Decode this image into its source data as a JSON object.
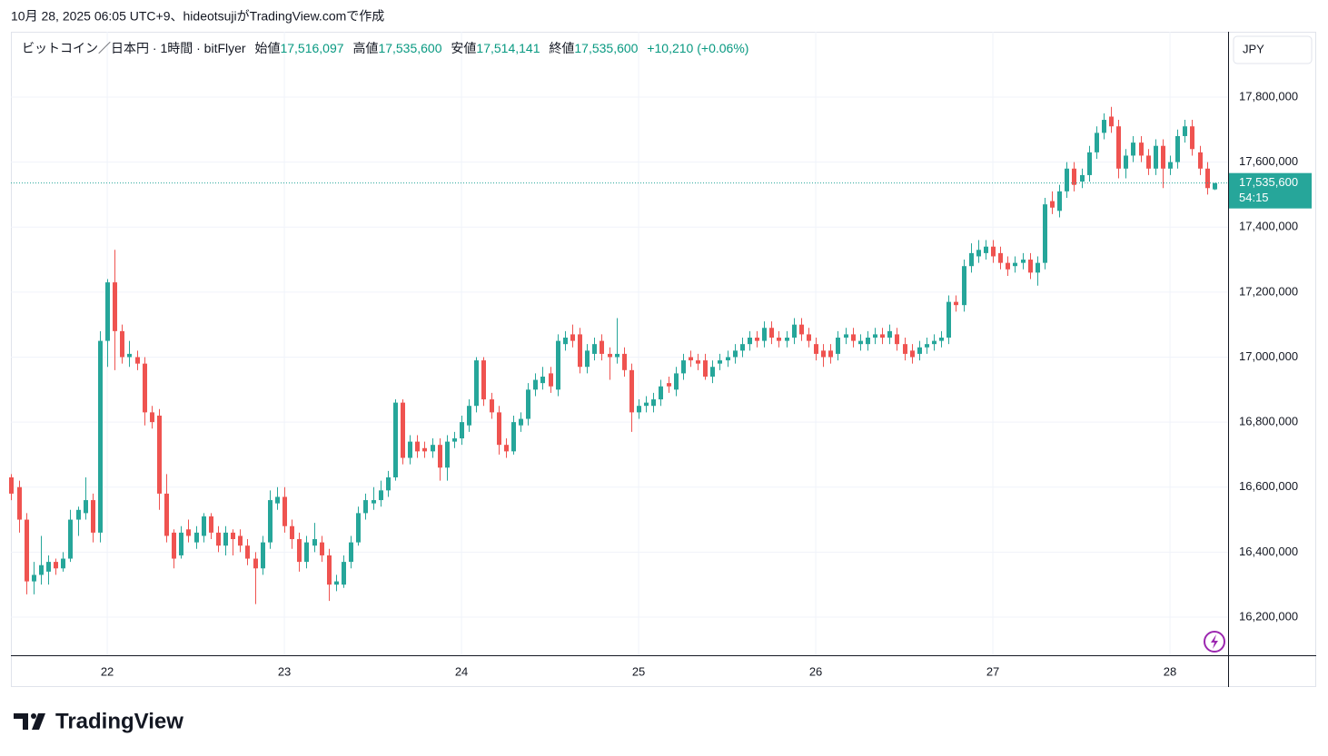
{
  "caption": "10月 28, 2025 06:05 UTC+9、hideotsujiがTradingView.comで作成",
  "brand": "TradingView",
  "currency": "JPY",
  "last_price_label": "17,535,600",
  "countdown": "54:15",
  "legend": {
    "symbol": "ビットコイン／日本円 · 1時間 · bitFlyer",
    "ohlc": [
      {
        "label": "始値",
        "value": "17,516,097"
      },
      {
        "label": "高値",
        "value": "17,535,600"
      },
      {
        "label": "安値",
        "value": "17,514,141"
      },
      {
        "label": "終値",
        "value": "17,535,600"
      }
    ],
    "change": "+10,210 (+0.06%)"
  },
  "chart_data": {
    "type": "candlestick",
    "up_color": "#26a69a",
    "down_color": "#ef5350",
    "grid": true,
    "xlim": [
      21.456,
      28.328
    ],
    "xticks": [
      22,
      23,
      24,
      25,
      26,
      27,
      28
    ],
    "ylim": [
      16082700,
      18001000
    ],
    "yticks": [
      {
        "value": 16200000,
        "label": "16,200,000"
      },
      {
        "value": 16400000,
        "label": "16,400,000"
      },
      {
        "value": 16600000,
        "label": "16,600,000"
      },
      {
        "value": 16800000,
        "label": "16,800,000"
      },
      {
        "value": 17000000,
        "label": "17,000,000"
      },
      {
        "value": 17200000,
        "label": "17,200,000"
      },
      {
        "value": 17400000,
        "label": "17,400,000"
      },
      {
        "value": 17600000,
        "label": "17,600,000"
      },
      {
        "value": 17800000,
        "label": "17,800,000"
      }
    ],
    "x": [
      21.4583,
      21.5,
      21.5417,
      21.5833,
      21.625,
      21.6667,
      21.7083,
      21.75,
      21.7917,
      21.8333,
      21.875,
      21.9167,
      21.9583,
      22,
      22.0417,
      22.0833,
      22.125,
      22.1667,
      22.2083,
      22.25,
      22.2917,
      22.3333,
      22.375,
      22.4167,
      22.4583,
      22.5,
      22.5417,
      22.5833,
      22.625,
      22.6667,
      22.7083,
      22.75,
      22.7917,
      22.8333,
      22.875,
      22.9167,
      22.9583,
      23,
      23.0417,
      23.0833,
      23.125,
      23.1667,
      23.2083,
      23.25,
      23.2917,
      23.3333,
      23.375,
      23.4167,
      23.4583,
      23.5,
      23.5417,
      23.5833,
      23.625,
      23.6667,
      23.7083,
      23.75,
      23.7917,
      23.8333,
      23.875,
      23.9167,
      23.9583,
      24,
      24.0417,
      24.0833,
      24.125,
      24.1667,
      24.2083,
      24.25,
      24.2917,
      24.3333,
      24.375,
      24.4167,
      24.4583,
      24.5,
      24.5417,
      24.5833,
      24.625,
      24.6667,
      24.7083,
      24.75,
      24.7917,
      24.8333,
      24.875,
      24.9167,
      24.9583,
      25,
      25.0417,
      25.0833,
      25.125,
      25.1667,
      25.2083,
      25.25,
      25.2917,
      25.3333,
      25.375,
      25.4167,
      25.4583,
      25.5,
      25.5417,
      25.5833,
      25.625,
      25.6667,
      25.7083,
      25.75,
      25.7917,
      25.8333,
      25.875,
      25.9167,
      25.9583,
      26,
      26.0417,
      26.0833,
      26.125,
      26.1667,
      26.2083,
      26.25,
      26.2917,
      26.3333,
      26.375,
      26.4167,
      26.4583,
      26.5,
      26.5417,
      26.5833,
      26.625,
      26.6667,
      26.7083,
      26.75,
      26.7917,
      26.8333,
      26.875,
      26.9167,
      26.9583,
      27,
      27.0417,
      27.0833,
      27.125,
      27.1667,
      27.2083,
      27.25,
      27.2917,
      27.3333,
      27.375,
      27.4167,
      27.4583,
      27.5,
      27.5417,
      27.5833,
      27.625,
      27.6667,
      27.7083,
      27.75,
      27.7917,
      27.8333,
      27.875,
      27.9167,
      27.9583,
      28,
      28.0417,
      28.0833,
      28.125,
      28.1667,
      28.2083,
      28.25
    ],
    "open": [
      16630000,
      16600000,
      16500000,
      16310000,
      16330000,
      16340000,
      16370000,
      16350000,
      16380000,
      16500000,
      16520000,
      16560000,
      16460000,
      17050000,
      17230000,
      17080000,
      17000000,
      17000000,
      16980000,
      16830000,
      16820000,
      16580000,
      16460000,
      16390000,
      16470000,
      16430000,
      16450000,
      16510000,
      16460000,
      16420000,
      16460000,
      16450000,
      16420000,
      16380000,
      16350000,
      16430000,
      16550000,
      16570000,
      16480000,
      16440000,
      16370000,
      16420000,
      16430000,
      16390000,
      16300000,
      16300000,
      16370000,
      16430000,
      16520000,
      16550000,
      16560000,
      16590000,
      16630000,
      16860000,
      16690000,
      16740000,
      16720000,
      16710000,
      16730000,
      16660000,
      16740000,
      16750000,
      16790000,
      16850000,
      16990000,
      16870000,
      16830000,
      16730000,
      16710000,
      16790000,
      16810000,
      16900000,
      16920000,
      16950000,
      16900000,
      17040000,
      17070000,
      17070000,
      16970000,
      17010000,
      17050000,
      17010000,
      17000000,
      17010000,
      16960000,
      16830000,
      16850000,
      16850000,
      16870000,
      16920000,
      16900000,
      16950000,
      17000000,
      16990000,
      16990000,
      16940000,
      16980000,
      16990000,
      17000000,
      17020000,
      17040000,
      17060000,
      17050000,
      17090000,
      17060000,
      17050000,
      17060000,
      17100000,
      17070000,
      17040000,
      17020000,
      17020000,
      17010000,
      17060000,
      17070000,
      17040000,
      17040000,
      17060000,
      17070000,
      17060000,
      17070000,
      17040000,
      17020000,
      17010000,
      17030000,
      17040000,
      17050000,
      17060000,
      17170000,
      17160000,
      17280000,
      17310000,
      17320000,
      17340000,
      17320000,
      17290000,
      17280000,
      17290000,
      17300000,
      17260000,
      17290000,
      17480000,
      17450000,
      17510000,
      17580000,
      17540000,
      17560000,
      17630000,
      17690000,
      17740000,
      17710000,
      17580000,
      17620000,
      17660000,
      17620000,
      17580000,
      17650000,
      17580000,
      17600000,
      17680000,
      17710000,
      17630000,
      17580000,
      17516097
    ],
    "high": [
      16640000,
      16620000,
      16520000,
      16370000,
      16450000,
      16390000,
      16380000,
      16400000,
      16530000,
      16540000,
      16630000,
      16580000,
      17080000,
      17240000,
      17330000,
      17100000,
      17050000,
      17020000,
      17000000,
      16850000,
      16840000,
      16640000,
      16470000,
      16480000,
      16500000,
      16480000,
      16520000,
      16520000,
      16480000,
      16480000,
      16470000,
      16470000,
      16440000,
      16400000,
      16450000,
      16590000,
      16600000,
      16600000,
      16500000,
      16460000,
      16450000,
      16490000,
      16450000,
      16410000,
      16330000,
      16390000,
      16450000,
      16540000,
      16580000,
      16600000,
      16620000,
      16650000,
      16870000,
      16870000,
      16760000,
      16760000,
      16740000,
      16750000,
      16750000,
      16760000,
      16770000,
      16820000,
      16870000,
      17000000,
      17000000,
      16890000,
      16850000,
      16750000,
      16820000,
      16830000,
      16920000,
      16950000,
      16970000,
      16970000,
      17070000,
      17080000,
      17100000,
      17090000,
      17040000,
      17060000,
      17070000,
      17030000,
      17120000,
      17030000,
      16980000,
      16870000,
      16880000,
      16890000,
      16930000,
      16940000,
      16970000,
      17010000,
      17020000,
      17010000,
      17010000,
      16990000,
      17010000,
      17020000,
      17040000,
      17060000,
      17080000,
      17080000,
      17110000,
      17110000,
      17080000,
      17080000,
      17120000,
      17120000,
      17090000,
      17060000,
      17040000,
      17040000,
      17080000,
      17090000,
      17090000,
      17070000,
      17080000,
      17090000,
      17090000,
      17100000,
      17090000,
      17060000,
      17040000,
      17050000,
      17060000,
      17070000,
      17080000,
      17190000,
      17190000,
      17300000,
      17350000,
      17360000,
      17360000,
      17360000,
      17340000,
      17310000,
      17310000,
      17320000,
      17320000,
      17310000,
      17490000,
      17510000,
      17530000,
      17600000,
      17600000,
      17580000,
      17650000,
      17710000,
      17750000,
      17770000,
      17730000,
      17640000,
      17680000,
      17680000,
      17640000,
      17670000,
      17670000,
      17620000,
      17700000,
      17730000,
      17730000,
      17650000,
      17600000,
      17535600
    ],
    "low": [
      16560000,
      16460000,
      16270000,
      16270000,
      16300000,
      16300000,
      16330000,
      16340000,
      16370000,
      16450000,
      16500000,
      16430000,
      16430000,
      16970000,
      16960000,
      16980000,
      16970000,
      16960000,
      16790000,
      16780000,
      16530000,
      16430000,
      16350000,
      16380000,
      16430000,
      16410000,
      16430000,
      16440000,
      16400000,
      16390000,
      16390000,
      16400000,
      16360000,
      16240000,
      16330000,
      16410000,
      16530000,
      16460000,
      16410000,
      16340000,
      16350000,
      16400000,
      16370000,
      16250000,
      16280000,
      16290000,
      16350000,
      16420000,
      16500000,
      16530000,
      16540000,
      16570000,
      16620000,
      16670000,
      16670000,
      16690000,
      16690000,
      16690000,
      16620000,
      16620000,
      16720000,
      16730000,
      16770000,
      16830000,
      16850000,
      16810000,
      16700000,
      16690000,
      16700000,
      16770000,
      16790000,
      16880000,
      16900000,
      16890000,
      16880000,
      17020000,
      17030000,
      16950000,
      16950000,
      16990000,
      16990000,
      16930000,
      16980000,
      16940000,
      16770000,
      16810000,
      16830000,
      16830000,
      16850000,
      16890000,
      16880000,
      16930000,
      16970000,
      16960000,
      16930000,
      16920000,
      16960000,
      16970000,
      16980000,
      17000000,
      17020000,
      17030000,
      17030000,
      17040000,
      17030000,
      17030000,
      17040000,
      17050000,
      17030000,
      16990000,
      16970000,
      16980000,
      16990000,
      17040000,
      17030000,
      17020000,
      17020000,
      17040000,
      17040000,
      17040000,
      17020000,
      16990000,
      16980000,
      16990000,
      17010000,
      17020000,
      17030000,
      17040000,
      17140000,
      17140000,
      17260000,
      17290000,
      17300000,
      17290000,
      17270000,
      17250000,
      17260000,
      17270000,
      17240000,
      17220000,
      17270000,
      17440000,
      17430000,
      17490000,
      17510000,
      17520000,
      17540000,
      17610000,
      17670000,
      17690000,
      17550000,
      17550000,
      17600000,
      17600000,
      17560000,
      17560000,
      17520000,
      17560000,
      17580000,
      17660000,
      17620000,
      17560000,
      17500000,
      17514141
    ],
    "close": [
      16580000,
      16500000,
      16310000,
      16330000,
      16360000,
      16370000,
      16350000,
      16380000,
      16500000,
      16530000,
      16560000,
      16460000,
      17050000,
      17230000,
      17080000,
      17000000,
      17010000,
      16980000,
      16830000,
      16800000,
      16580000,
      16450000,
      16380000,
      16460000,
      16450000,
      16460000,
      16510000,
      16460000,
      16420000,
      16460000,
      16440000,
      16420000,
      16380000,
      16350000,
      16430000,
      16560000,
      16570000,
      16480000,
      16440000,
      16370000,
      16430000,
      16440000,
      16390000,
      16300000,
      16310000,
      16370000,
      16430000,
      16520000,
      16560000,
      16560000,
      16590000,
      16630000,
      16860000,
      16690000,
      16740000,
      16710000,
      16710000,
      16730000,
      16660000,
      16740000,
      16750000,
      16800000,
      16850000,
      16990000,
      16870000,
      16830000,
      16730000,
      16710000,
      16800000,
      16810000,
      16900000,
      16930000,
      16940000,
      16910000,
      17050000,
      17060000,
      17050000,
      16970000,
      17020000,
      17040000,
      17010000,
      17000000,
      17010000,
      16960000,
      16830000,
      16850000,
      16860000,
      16870000,
      16910000,
      16910000,
      16950000,
      16990000,
      16990000,
      16980000,
      16940000,
      16970000,
      16990000,
      17000000,
      17020000,
      17040000,
      17060000,
      17050000,
      17090000,
      17060000,
      17050000,
      17060000,
      17100000,
      17070000,
      17050000,
      17010000,
      17000000,
      17000000,
      17060000,
      17070000,
      17050000,
      17050000,
      17060000,
      17070000,
      17060000,
      17080000,
      17040000,
      17010000,
      17000000,
      17030000,
      17040000,
      17050000,
      17060000,
      17170000,
      17160000,
      17280000,
      17320000,
      17330000,
      17340000,
      17310000,
      17290000,
      17270000,
      17290000,
      17300000,
      17260000,
      17290000,
      17470000,
      17460000,
      17510000,
      17580000,
      17530000,
      17560000,
      17630000,
      17690000,
      17730000,
      17710000,
      17580000,
      17620000,
      17660000,
      17620000,
      17580000,
      17650000,
      17580000,
      17600000,
      17680000,
      17710000,
      17640000,
      17580000,
      17520000,
      17535600
    ]
  }
}
